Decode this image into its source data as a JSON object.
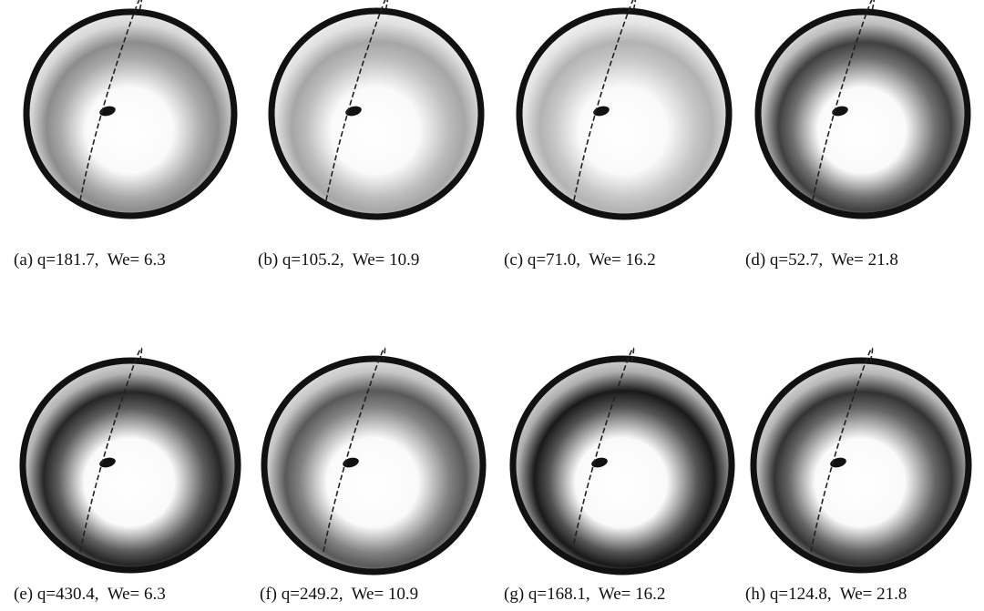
{
  "panels": [
    {
      "caption": "(a) q=181.7,  We= 6.3"
    },
    {
      "caption": "(b) q=105.2,  We= 10.9"
    },
    {
      "caption": "(c) q=71.0,  We= 16.2"
    },
    {
      "caption": "(d) q=52.7,  We= 21.8"
    },
    {
      "caption": "(e) q=430.4,  We= 6.3"
    },
    {
      "caption": "(f) q=249.2,  We= 10.9"
    },
    {
      "caption": "(g) q=168.1,  We= 16.2"
    },
    {
      "caption": "(h) q=124.8,  We= 21.8"
    }
  ]
}
